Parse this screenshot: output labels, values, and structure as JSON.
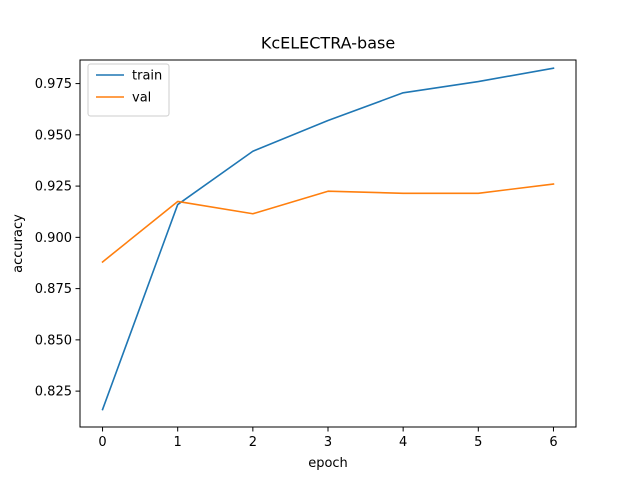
{
  "chart_data": {
    "type": "line",
    "title": "KcELECTRA-base",
    "xlabel": "epoch",
    "ylabel": "accuracy",
    "x": [
      0,
      1,
      2,
      3,
      4,
      5,
      6
    ],
    "xticks": [
      "0",
      "1",
      "2",
      "3",
      "4",
      "5",
      "6"
    ],
    "xlim": [
      -0.3,
      6.3
    ],
    "yticks": [
      "0.825",
      "0.850",
      "0.875",
      "0.900",
      "0.925",
      "0.950",
      "0.975"
    ],
    "ylim": [
      0.8075,
      0.9865
    ],
    "grid": false,
    "legend_position": "upper-left",
    "series": [
      {
        "name": "train",
        "color": "#1f77b4",
        "values": [
          0.816,
          0.916,
          0.942,
          0.957,
          0.9705,
          0.976,
          0.9825
        ]
      },
      {
        "name": "val",
        "color": "#ff7f0e",
        "values": [
          0.888,
          0.9175,
          0.9115,
          0.9225,
          0.9215,
          0.9215,
          0.926
        ]
      }
    ]
  }
}
